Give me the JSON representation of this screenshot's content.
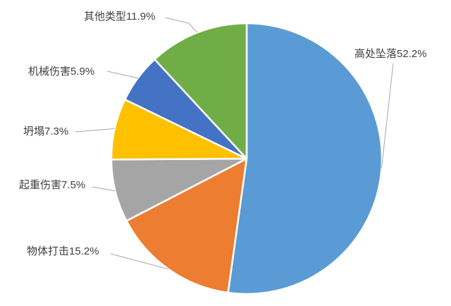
{
  "chart_data": {
    "type": "pie",
    "title": "",
    "direction": "clockwise",
    "start_angle_deg": 0,
    "labels_position": "outside-with-leader-lines",
    "legend": "none",
    "background": "#ffffff",
    "slice_border_color": "#ffffff",
    "leader_line_color": "#a6a6a6",
    "label_text_color": "#404040",
    "unit": "%",
    "categories": [
      "高处坠落",
      "物体打击",
      "起重伤害",
      "坍塌",
      "机械伤害",
      "其他类型"
    ],
    "values": [
      52.2,
      15.2,
      7.5,
      7.3,
      5.9,
      11.9
    ],
    "slices": [
      {
        "label": "高处坠落",
        "value": 52.2,
        "display": "高处坠落52.2%",
        "color": "#5B9BD5"
      },
      {
        "label": "物体打击",
        "value": 15.2,
        "display": "物体打击15.2%",
        "color": "#ED7D31"
      },
      {
        "label": "起重伤害",
        "value": 7.5,
        "display": "起重伤害7.5%",
        "color": "#A5A5A5"
      },
      {
        "label": "坍塌",
        "value": 7.3,
        "display": "坍塌7.3%",
        "color": "#FFC000"
      },
      {
        "label": "机械伤害",
        "value": 5.9,
        "display": "机械伤害5.9%",
        "color": "#4472C4"
      },
      {
        "label": "其他类型",
        "value": 11.9,
        "display": "其他类型11.9%",
        "color": "#70AD47"
      }
    ]
  }
}
